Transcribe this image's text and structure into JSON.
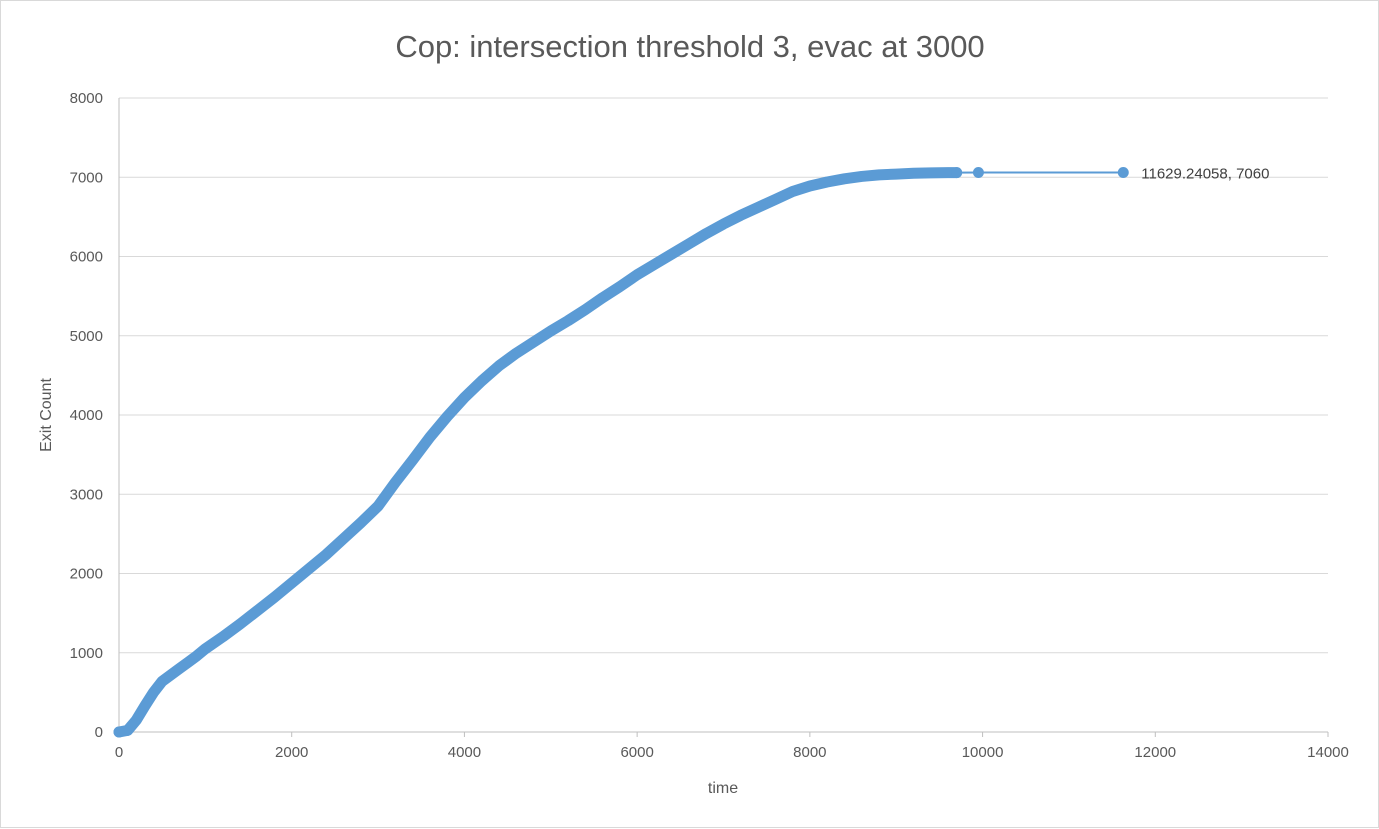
{
  "chart_data": {
    "type": "scatter",
    "title": "Cop: intersection threshold 3, evac at 3000",
    "xlabel": "time",
    "ylabel": "Exit Count",
    "xlim": [
      0,
      14000
    ],
    "ylim": [
      0,
      8000
    ],
    "x_ticks": [
      0,
      2000,
      4000,
      6000,
      8000,
      10000,
      12000,
      14000
    ],
    "y_ticks": [
      0,
      1000,
      2000,
      3000,
      4000,
      5000,
      6000,
      7000,
      8000
    ],
    "x_tick_labels": [
      "0",
      "2000",
      "4000",
      "6000",
      "8000",
      "10000",
      "12000",
      "14000"
    ],
    "y_tick_labels": [
      "0",
      "1000",
      "2000",
      "3000",
      "4000",
      "5000",
      "6000",
      "7000",
      "8000"
    ],
    "grid": "horizontal",
    "legend": "none",
    "series": [
      {
        "color": "#5b9bd5",
        "mode": "lines+markers",
        "points": [
          [
            0,
            0
          ],
          [
            100,
            20
          ],
          [
            200,
            150
          ],
          [
            300,
            330
          ],
          [
            400,
            500
          ],
          [
            500,
            640
          ],
          [
            600,
            720
          ],
          [
            700,
            800
          ],
          [
            800,
            880
          ],
          [
            900,
            960
          ],
          [
            1000,
            1050
          ],
          [
            1200,
            1200
          ],
          [
            1400,
            1360
          ],
          [
            1600,
            1530
          ],
          [
            1800,
            1700
          ],
          [
            2000,
            1880
          ],
          [
            2200,
            2060
          ],
          [
            2400,
            2240
          ],
          [
            2600,
            2440
          ],
          [
            2800,
            2640
          ],
          [
            3000,
            2850
          ],
          [
            3100,
            3000
          ],
          [
            3200,
            3150
          ],
          [
            3400,
            3430
          ],
          [
            3600,
            3720
          ],
          [
            3800,
            3980
          ],
          [
            4000,
            4220
          ],
          [
            4200,
            4430
          ],
          [
            4400,
            4620
          ],
          [
            4600,
            4780
          ],
          [
            4800,
            4920
          ],
          [
            5000,
            5060
          ],
          [
            5200,
            5190
          ],
          [
            5400,
            5330
          ],
          [
            5600,
            5480
          ],
          [
            5800,
            5620
          ],
          [
            6000,
            5770
          ],
          [
            6200,
            5900
          ],
          [
            6400,
            6030
          ],
          [
            6600,
            6160
          ],
          [
            6800,
            6290
          ],
          [
            7000,
            6410
          ],
          [
            7200,
            6520
          ],
          [
            7400,
            6620
          ],
          [
            7600,
            6720
          ],
          [
            7800,
            6820
          ],
          [
            8000,
            6890
          ],
          [
            8200,
            6940
          ],
          [
            8400,
            6980
          ],
          [
            8600,
            7010
          ],
          [
            8800,
            7030
          ],
          [
            9000,
            7040
          ],
          [
            9200,
            7050
          ],
          [
            9400,
            7055
          ],
          [
            9600,
            7058
          ],
          [
            9700,
            7058
          ],
          [
            9952,
            7060
          ],
          [
            11629.24058,
            7060
          ]
        ]
      }
    ],
    "annotation": {
      "x": 11629.24058,
      "y": 7060,
      "text": "11629.24058, 7060"
    },
    "colors": {
      "series": "#5b9bd5",
      "grid": "#d9d9d9",
      "text": "#595959"
    }
  }
}
